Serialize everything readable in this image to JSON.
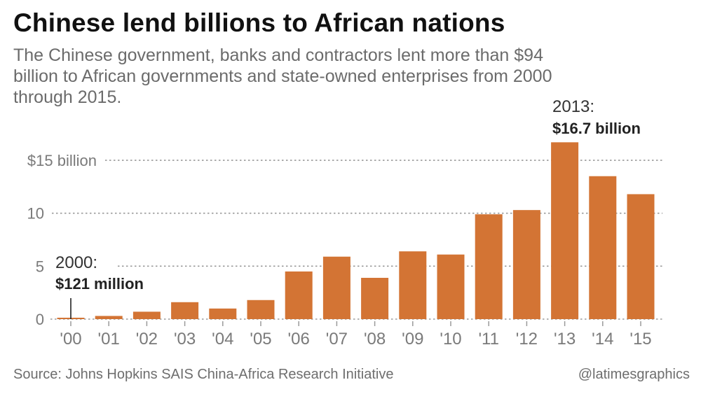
{
  "header": {
    "title": "Chinese lend billions to African nations",
    "subtitle": "The Chinese government, banks and contractors lent more than $94 billion to African governments and state-owned enterprises from 2000 through 2015."
  },
  "footer": {
    "source": "Source: Johns Hopkins SAIS China-Africa Research Initiative",
    "credit": "@latimesgraphics"
  },
  "colors": {
    "bar": "#d37434",
    "grid": "#9a9a9a",
    "axis_text": "#7a7a7a",
    "annotation": "#222222"
  },
  "chart_data": {
    "type": "bar",
    "title": "Chinese lend billions to African nations",
    "xlabel": "",
    "ylabel": "",
    "unit": "billion USD",
    "categories": [
      "'00",
      "'01",
      "'02",
      "'03",
      "'04",
      "'05",
      "'06",
      "'07",
      "'08",
      "'09",
      "'10",
      "'11",
      "'12",
      "'13",
      "'14",
      "'15"
    ],
    "values": [
      0.121,
      0.3,
      0.7,
      1.6,
      1.0,
      1.8,
      4.5,
      5.9,
      3.9,
      6.4,
      6.1,
      9.9,
      10.3,
      16.7,
      13.5,
      11.8
    ],
    "ylim": [
      0,
      17
    ],
    "yticks": [
      {
        "value": 0,
        "label": "0"
      },
      {
        "value": 5,
        "label": "5"
      },
      {
        "value": 10,
        "label": "10"
      },
      {
        "value": 15,
        "label": "$15 billion"
      }
    ],
    "grid": true,
    "legend": "none",
    "annotations": [
      {
        "category_index": 0,
        "line1": "2000:",
        "line2": "$121 million"
      },
      {
        "category_index": 13,
        "line1": "2013:",
        "line2": "$16.7 billion"
      }
    ]
  }
}
